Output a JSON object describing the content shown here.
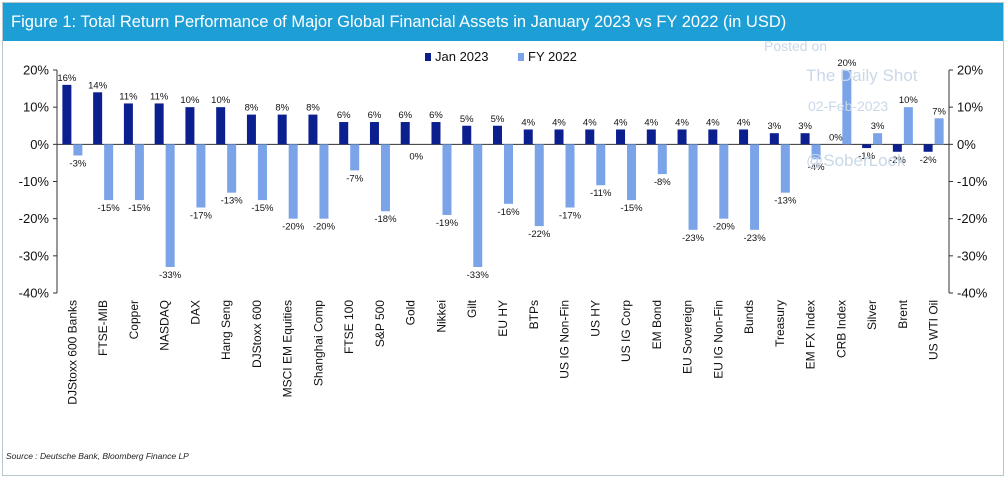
{
  "header": {
    "title": "Figure 1: Total Return Performance of Major Global Financial Assets in January 2023 vs FY 2022 (in USD)"
  },
  "footer": {
    "source": "Source : Deutsche Bank, Bloomberg Finance LP"
  },
  "watermark": {
    "line1": "Posted on",
    "line2": "The Daily Shot",
    "line3": "02-Feb-2023",
    "line4": "@SoberLook"
  },
  "colors": {
    "jan2023": "#0b1f8f",
    "fy2022": "#7aa3e8",
    "title_bg": "#1d9fd6"
  },
  "chart_data": {
    "type": "bar",
    "title": "Figure 1: Total Return Performance of Major Global Financial Assets in January 2023 vs FY 2022 (in USD)",
    "ylim": [
      -40,
      20
    ],
    "yticks": [
      20,
      10,
      0,
      -10,
      -20,
      -30,
      -40
    ],
    "ytick_labels": [
      "20%",
      "10%",
      "0%",
      "-10%",
      "-20%",
      "-30%",
      "-40%"
    ],
    "legend_position": "top-center",
    "categories": [
      "DJStoxx 600 Banks",
      "FTSE-MIB",
      "Copper",
      "NASDAQ",
      "DAX",
      "Hang Seng",
      "DJStoxx 600",
      "MSCI EM Equities",
      "Shanghai Comp",
      "FTSE 100",
      "S&P 500",
      "Gold",
      "Nikkei",
      "Gilt",
      "EU HY",
      "BTPs",
      "US IG Non-Fin",
      "US HY",
      "US IG Corp",
      "EM Bond",
      "EU Sovereign",
      "EU IG Non-Fin",
      "Bunds",
      "Treasury",
      "EM FX Index",
      "CRB Index",
      "Silver",
      "Brent",
      "US WTI Oil"
    ],
    "series": [
      {
        "name": "Jan 2023",
        "values": [
          16,
          14,
          11,
          11,
          10,
          10,
          8,
          8,
          8,
          6,
          6,
          6,
          6,
          5,
          5,
          4,
          4,
          4,
          4,
          4,
          4,
          4,
          4,
          3,
          3,
          0,
          -1,
          -2,
          -2
        ],
        "labels": [
          "16%",
          "14%",
          "11%",
          "11%",
          "10%",
          "10%",
          "8%",
          "8%",
          "8%",
          "6%",
          "6%",
          "6%",
          "6%",
          "5%",
          "5%",
          "4%",
          "4%",
          "4%",
          "4%",
          "4%",
          "4%",
          "4%",
          "4%",
          "3%",
          "3%",
          "0%",
          "-1%",
          "-2%",
          "-2%"
        ]
      },
      {
        "name": "FY 2022",
        "values": [
          -3,
          -15,
          -15,
          -33,
          -17,
          -13,
          -15,
          -20,
          -20,
          -7,
          -18,
          0,
          -19,
          -33,
          -16,
          -22,
          -17,
          -11,
          -15,
          -8,
          -23,
          -20,
          -23,
          -13,
          -4,
          20,
          3,
          10,
          7
        ],
        "labels": [
          "-3%",
          "-15%",
          "-15%",
          "-33%",
          "-17%",
          "-13%",
          "-15%",
          "-20%",
          "-20%",
          "-7%",
          "-18%",
          "0%",
          "-19%",
          "-33%",
          "-16%",
          "-22%",
          "-17%",
          "-11%",
          "-15%",
          "-8%",
          "-23%",
          "-20%",
          "-23%",
          "-13%",
          "-4%",
          "20%",
          "3%",
          "10%",
          "7%"
        ]
      }
    ]
  }
}
